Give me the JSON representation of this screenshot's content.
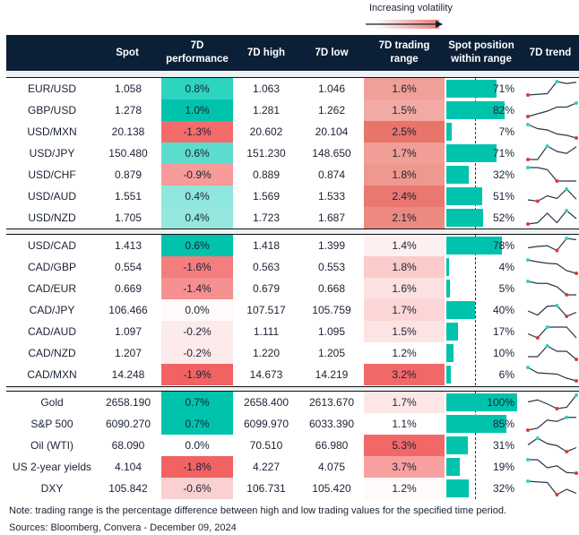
{
  "legend": {
    "label": "Increasing volatility"
  },
  "header": {
    "spot": "Spot",
    "perf": "7D\nperformance",
    "high": "7D high",
    "low": "7D low",
    "range": "7D trading\nrange",
    "position": "Spot position\nwithin range",
    "trend": "7D trend"
  },
  "colors": {
    "header_bg": "#0b1f36",
    "bar": "#00c3ad",
    "max_marker": "#2dd4c0",
    "min_marker": "#e53935"
  },
  "chart_data": {
    "type": "table",
    "sections": [
      {
        "rows": [
          {
            "name": "EUR/USD",
            "spot": "1.058",
            "perf": "0.8%",
            "perf_color": "#2dd4c0",
            "high": "1.063",
            "low": "1.046",
            "range": "1.6%",
            "range_color": "#f0a098",
            "position": 71,
            "trend": [
              0,
              0.05,
              0.1,
              1,
              0.85,
              0.95
            ]
          },
          {
            "name": "GBP/USD",
            "spot": "1.278",
            "perf": "1.0%",
            "perf_color": "#00c3ad",
            "high": "1.281",
            "low": "1.262",
            "range": "1.5%",
            "range_color": "#f2aaa4",
            "position": 82,
            "trend": [
              0,
              0.2,
              0.4,
              0.7,
              0.7,
              1
            ]
          },
          {
            "name": "USD/MXN",
            "spot": "20.138",
            "perf": "-1.3%",
            "perf_color": "#f46b6b",
            "high": "20.602",
            "low": "20.104",
            "range": "2.5%",
            "range_color": "#e8746a",
            "position": 7,
            "trend": [
              1,
              0.7,
              0.6,
              0.3,
              0.2,
              0
            ]
          },
          {
            "name": "USD/JPY",
            "spot": "150.480",
            "perf": "0.6%",
            "perf_color": "#5ddccd",
            "high": "151.230",
            "low": "148.650",
            "range": "1.7%",
            "range_color": "#f09e96",
            "position": 71,
            "trend": [
              0,
              0,
              1,
              0.6,
              0.45,
              0.95
            ]
          },
          {
            "name": "USD/CHF",
            "spot": "0.879",
            "perf": "-0.9%",
            "perf_color": "#f79a9a",
            "high": "0.889",
            "low": "0.874",
            "range": "1.8%",
            "range_color": "#ee9890",
            "position": 32,
            "trend": [
              1,
              1,
              0.85,
              0,
              0,
              0
            ]
          },
          {
            "name": "USD/AUD",
            "spot": "1.551",
            "perf": "0.4%",
            "perf_color": "#8fe6dc",
            "high": "1.569",
            "low": "1.533",
            "range": "2.4%",
            "range_color": "#e87870",
            "position": 51,
            "trend": [
              0.2,
              0.1,
              0.5,
              0.3,
              1,
              0.25
            ]
          },
          {
            "name": "USD/NZD",
            "spot": "1.705",
            "perf": "0.4%",
            "perf_color": "#95e7de",
            "high": "1.723",
            "low": "1.687",
            "range": "2.1%",
            "range_color": "#ec8a80",
            "position": 52,
            "trend": [
              0,
              0.1,
              0.8,
              0.1,
              1,
              0.4
            ]
          }
        ]
      },
      {
        "rows": [
          {
            "name": "USD/CAD",
            "spot": "1.413",
            "perf": "0.6%",
            "perf_color": "#00c3ad",
            "high": "1.418",
            "low": "1.399",
            "range": "1.4%",
            "range_color": "#fff0f0",
            "position": 78,
            "trend": [
              0.3,
              0.4,
              0.45,
              0.1,
              1,
              0.9
            ]
          },
          {
            "name": "CAD/GBP",
            "spot": "0.554",
            "perf": "-1.6%",
            "perf_color": "#f47d7d",
            "high": "0.563",
            "low": "0.553",
            "range": "1.8%",
            "range_color": "#fbcaca",
            "position": 4,
            "trend": [
              1,
              0.85,
              0.75,
              0.7,
              0.2,
              0
            ]
          },
          {
            "name": "CAD/EUR",
            "spot": "0.669",
            "perf": "-1.4%",
            "perf_color": "#f69090",
            "high": "0.679",
            "low": "0.668",
            "range": "1.6%",
            "range_color": "#fde0e0",
            "position": 5,
            "trend": [
              1,
              0.85,
              0.85,
              0.6,
              0,
              0
            ]
          },
          {
            "name": "CAD/JPY",
            "spot": "106.466",
            "perf": "0.0%",
            "perf_color": "#fffafa",
            "high": "107.517",
            "low": "105.759",
            "range": "1.7%",
            "range_color": "#fcd6d6",
            "position": 40,
            "trend": [
              0.4,
              0.1,
              0.75,
              0.8,
              0,
              0.3
            ]
          },
          {
            "name": "CAD/AUD",
            "spot": "1.097",
            "perf": "-0.2%",
            "perf_color": "#fdeaea",
            "high": "1.111",
            "low": "1.095",
            "range": "1.5%",
            "range_color": "#fde4e4",
            "position": 17,
            "trend": [
              0.3,
              0,
              0.8,
              0.8,
              0.8,
              0
            ]
          },
          {
            "name": "CAD/NZD",
            "spot": "1.207",
            "perf": "-0.2%",
            "perf_color": "#fdeaea",
            "high": "1.220",
            "low": "1.205",
            "range": "1.2%",
            "range_color": "#ffffff",
            "position": 10,
            "trend": [
              0.2,
              0.2,
              1,
              0.6,
              0.6,
              0
            ]
          },
          {
            "name": "CAD/MXN",
            "spot": "14.248",
            "perf": "-1.9%",
            "perf_color": "#f26262",
            "high": "14.673",
            "low": "14.219",
            "range": "3.2%",
            "range_color": "#f26868",
            "position": 6,
            "trend": [
              1,
              0.6,
              0.55,
              0.5,
              0.2,
              0
            ]
          }
        ]
      },
      {
        "rows": [
          {
            "name": "Gold",
            "spot": "2658.190",
            "perf": "0.7%",
            "perf_color": "#00c3ad",
            "high": "2658.400",
            "low": "2613.670",
            "range": "1.7%",
            "range_color": "#fde6e6",
            "position": 100,
            "trend": [
              0.5,
              0.65,
              0.35,
              0,
              0.1,
              1
            ]
          },
          {
            "name": "S&P 500",
            "spot": "6090.270",
            "perf": "0.7%",
            "perf_color": "#00c3ad",
            "high": "6099.970",
            "low": "6033.390",
            "range": "1.1%",
            "range_color": "#ffffff",
            "position": 85,
            "trend": [
              0,
              0.15,
              0.75,
              0.65,
              0.95,
              0.95
            ]
          },
          {
            "name": "Oil (WTI)",
            "spot": "68.090",
            "perf": "0.0%",
            "perf_color": "#ffffff",
            "high": "70.510",
            "low": "66.980",
            "range": "5.3%",
            "range_color": "#f26868",
            "position": 31,
            "trend": [
              0.5,
              1,
              0.6,
              0.45,
              0,
              0.3
            ]
          },
          {
            "name": "US 2-year yields",
            "spot": "4.104",
            "perf": "-1.8%",
            "perf_color": "#f26262",
            "high": "4.227",
            "low": "4.075",
            "range": "3.7%",
            "range_color": "#f8a0a0",
            "position": 19,
            "trend": [
              1,
              1,
              0.4,
              0.55,
              0.05,
              0
            ]
          },
          {
            "name": "DXY",
            "spot": "105.842",
            "perf": "-0.6%",
            "perf_color": "#fbd0d0",
            "high": "106.731",
            "low": "105.420",
            "range": "1.2%",
            "range_color": "#fffafa",
            "position": 32,
            "trend": [
              1,
              0.95,
              0.9,
              0,
              0.4,
              0.1
            ]
          }
        ]
      }
    ]
  },
  "footer": {
    "note": "Note: trading range is the percentage difference between high and low trading values for the specified time period.",
    "sources": "Sources: Bloomberg, Convera - December 09, 2024"
  }
}
